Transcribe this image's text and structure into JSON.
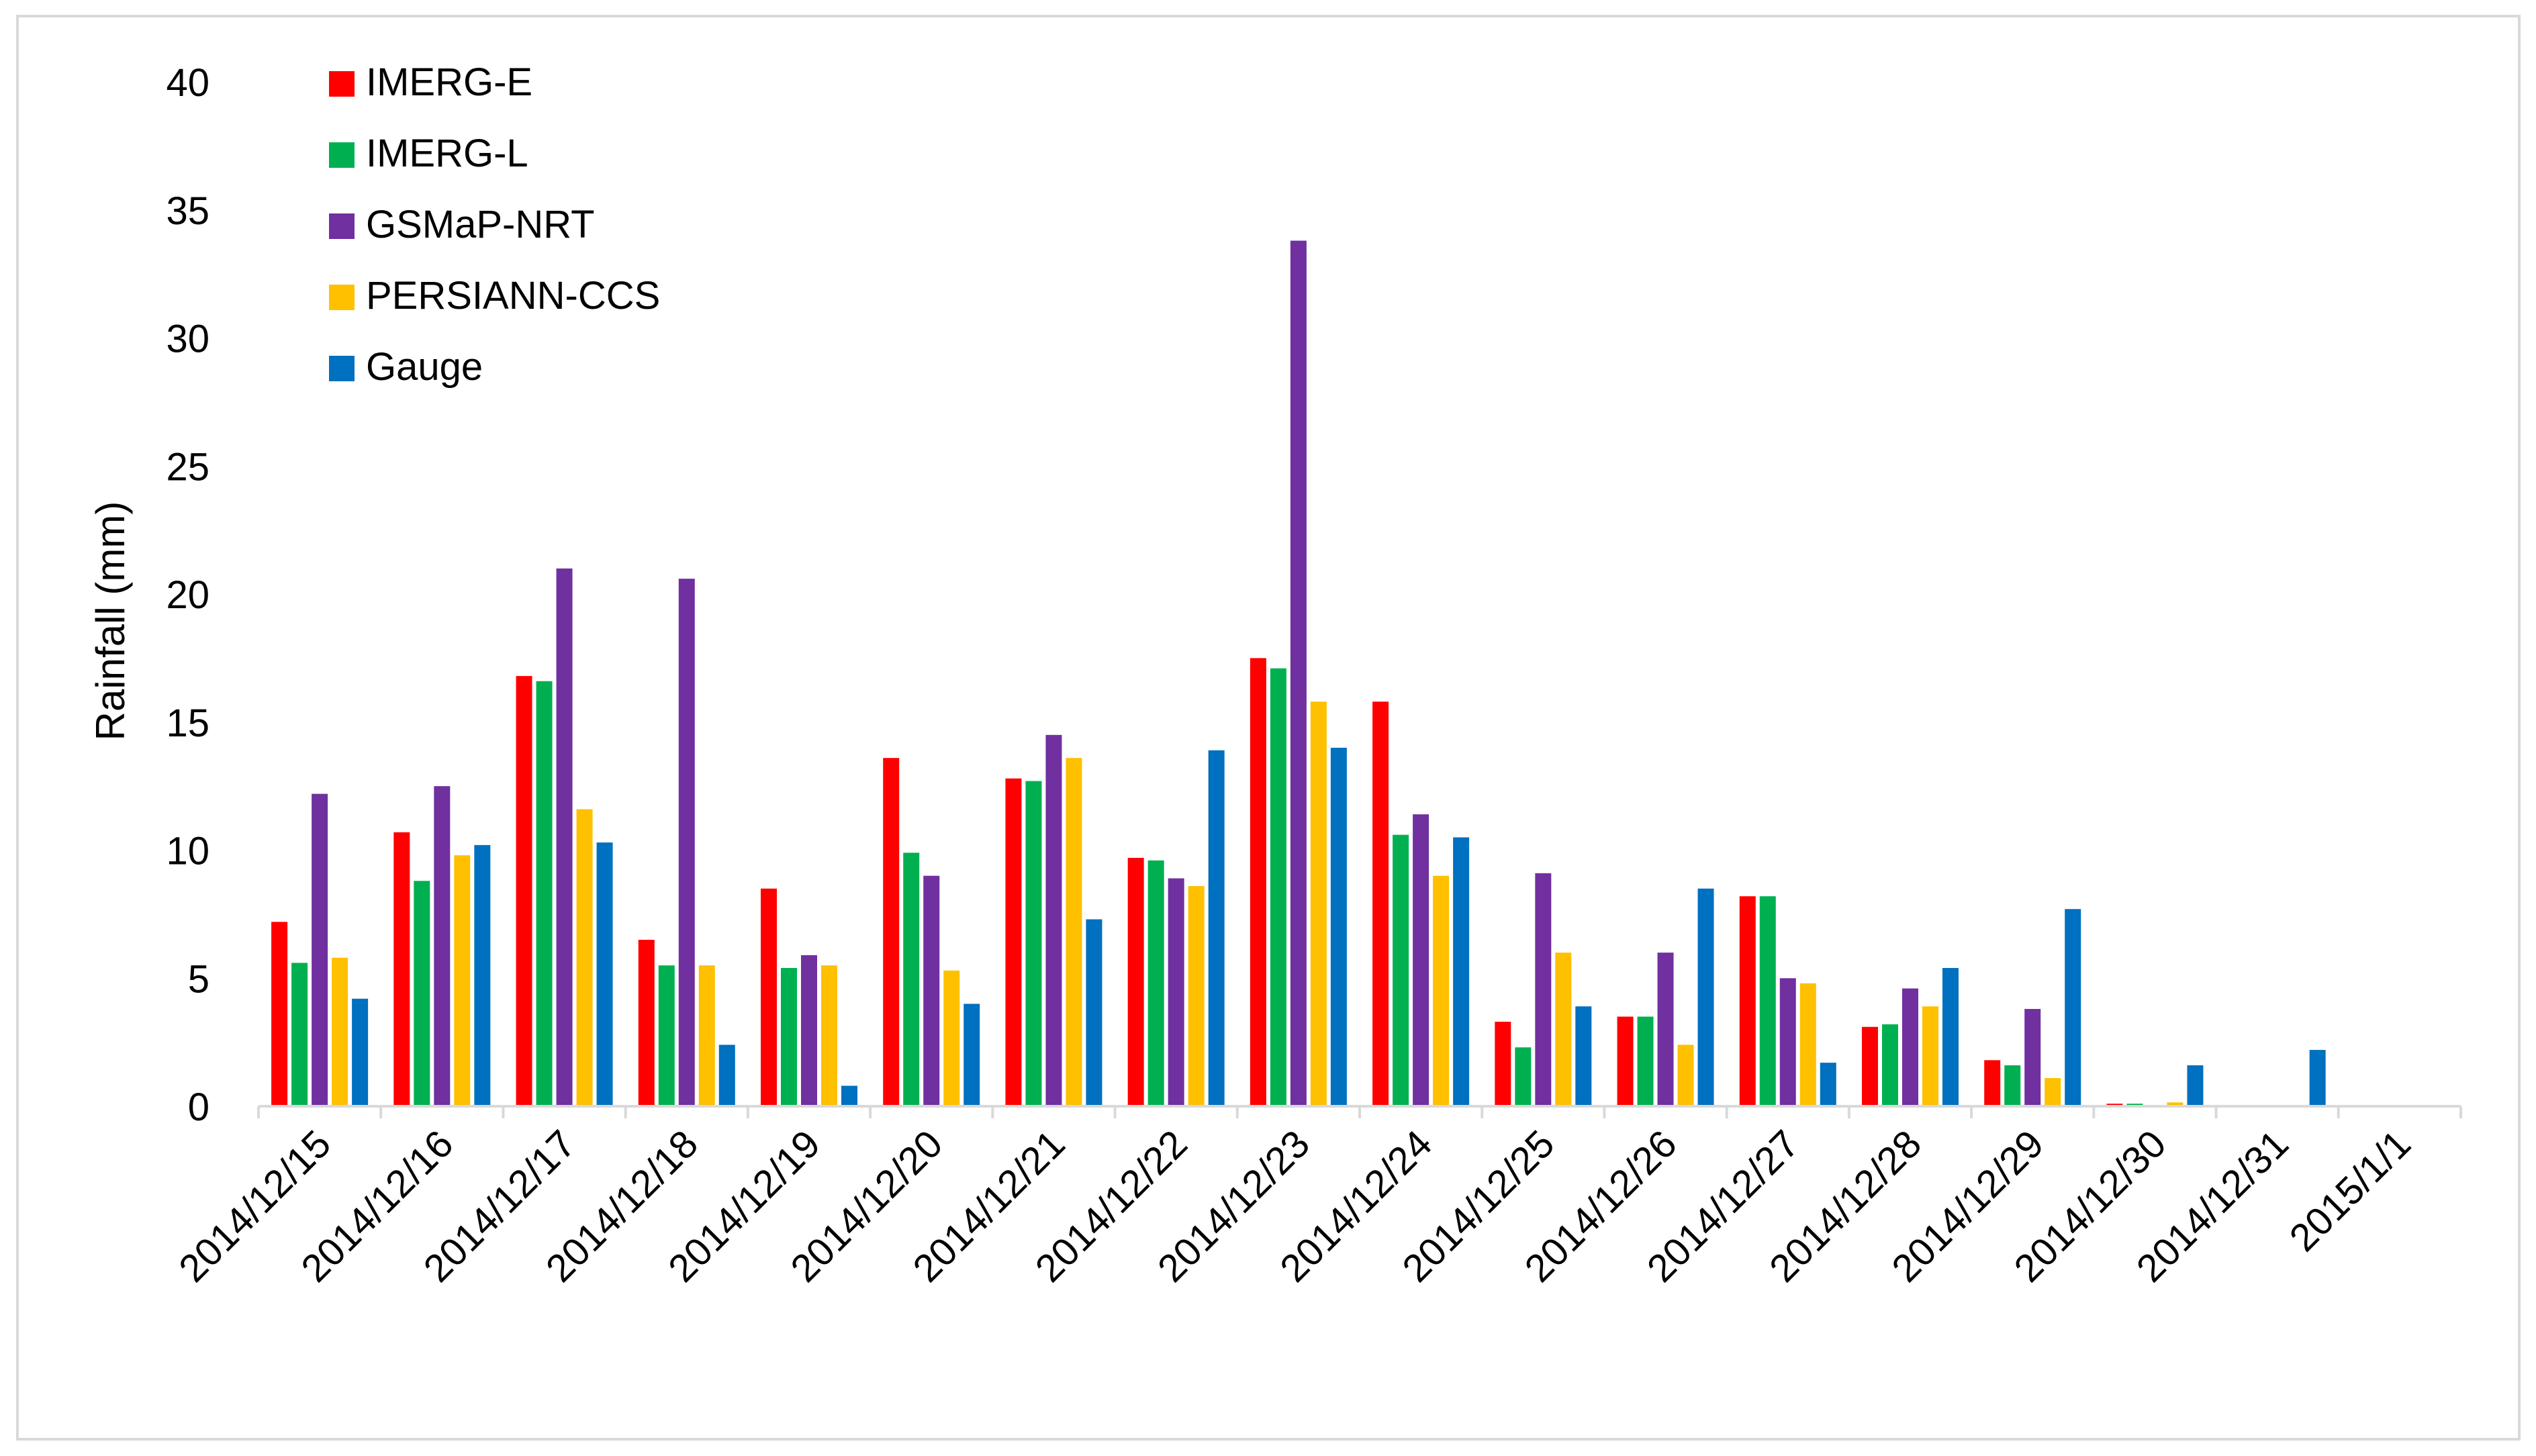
{
  "chart_data": {
    "type": "bar",
    "title": "",
    "xlabel": "",
    "ylabel": "Rainfall (mm)",
    "ylim": [
      0,
      40
    ],
    "yticks": [
      0,
      5,
      10,
      15,
      20,
      25,
      30,
      35,
      40
    ],
    "grid": false,
    "legend_position": "top-left",
    "categories": [
      "2014/12/15",
      "2014/12/16",
      "2014/12/17",
      "2014/12/18",
      "2014/12/19",
      "2014/12/20",
      "2014/12/21",
      "2014/12/22",
      "2014/12/23",
      "2014/12/24",
      "2014/12/25",
      "2014/12/26",
      "2014/12/27",
      "2014/12/28",
      "2014/12/29",
      "2014/12/30",
      "2014/12/31",
      "2015/1/1"
    ],
    "series": [
      {
        "name": "IMERG-E",
        "color": "#ff0000",
        "values": [
          7.2,
          10.7,
          16.8,
          6.5,
          8.5,
          13.6,
          12.8,
          9.7,
          17.5,
          15.8,
          3.3,
          3.5,
          8.2,
          3.1,
          1.8,
          0.1,
          0,
          0
        ]
      },
      {
        "name": "IMERG-L",
        "color": "#00b050",
        "values": [
          5.6,
          8.8,
          16.6,
          5.5,
          5.4,
          9.9,
          12.7,
          9.6,
          17.1,
          10.6,
          2.3,
          3.5,
          8.2,
          3.2,
          1.6,
          0.1,
          0,
          0
        ]
      },
      {
        "name": "GSMaP-NRT",
        "color": "#7030a0",
        "values": [
          12.2,
          12.5,
          21.0,
          20.6,
          5.9,
          9.0,
          14.5,
          8.9,
          33.8,
          11.4,
          9.1,
          6.0,
          5.0,
          4.6,
          3.8,
          0.05,
          0,
          0
        ]
      },
      {
        "name": "PERSIANN-CCS",
        "color": "#ffc000",
        "values": [
          5.8,
          9.8,
          11.6,
          5.5,
          5.5,
          5.3,
          13.6,
          8.6,
          15.8,
          9.0,
          6.0,
          2.4,
          4.8,
          3.9,
          1.1,
          0.15,
          0,
          0
        ]
      },
      {
        "name": "Gauge",
        "color": "#0070c0",
        "values": [
          4.2,
          10.2,
          10.3,
          2.4,
          0.8,
          4.0,
          7.3,
          13.9,
          14.0,
          10.5,
          3.9,
          8.5,
          1.7,
          5.4,
          7.7,
          1.6,
          2.2,
          0
        ]
      }
    ]
  }
}
